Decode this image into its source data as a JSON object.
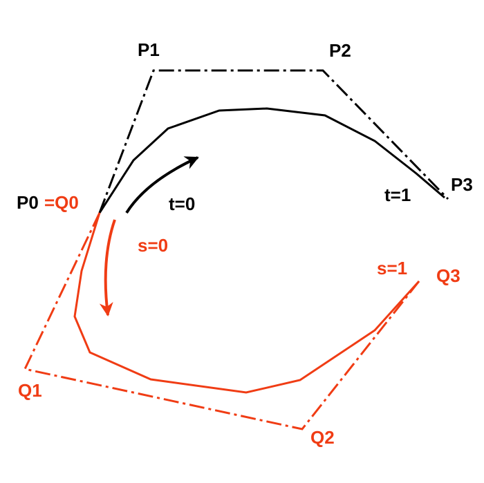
{
  "colors": {
    "black": "#000000",
    "red": "#f03c14",
    "background": "#ffffff"
  },
  "labels": {
    "p0": "P0",
    "eq_q0": "=Q0",
    "p1": "P1",
    "p2": "P2",
    "p3": "P3",
    "t0": "t=0",
    "t1": "t=1",
    "s0": "s=0",
    "s1": "s=1",
    "q1": "Q1",
    "q2": "Q2",
    "q3": "Q3"
  }
}
